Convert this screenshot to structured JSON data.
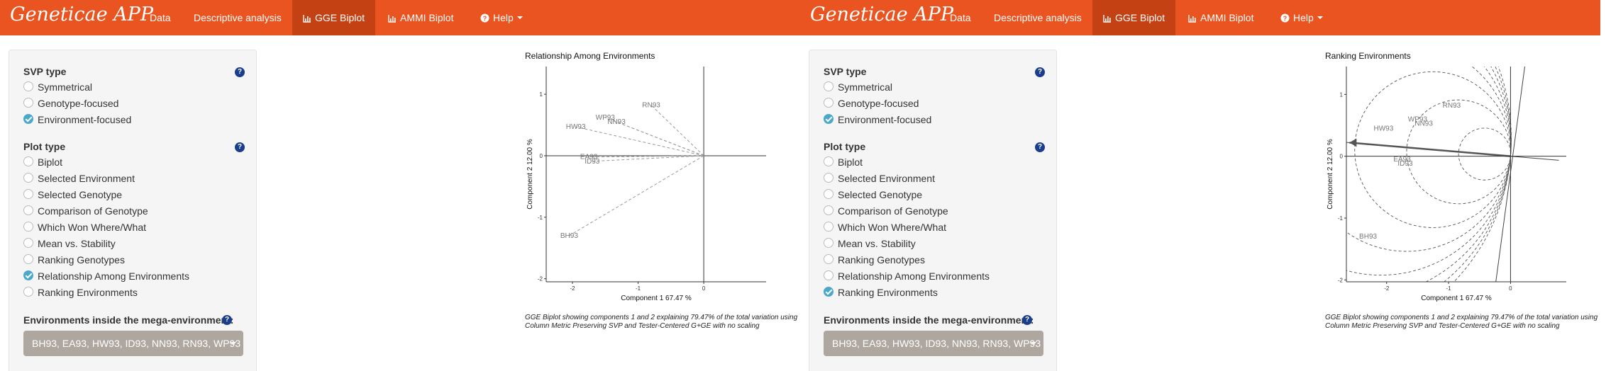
{
  "brand": "Geneticae APP",
  "nav": {
    "data": "Data",
    "descriptive": "Descriptive analysis",
    "gge": "GGE Biplot",
    "ammi": "AMMI Biplot",
    "help": "Help"
  },
  "colors": {
    "navbar": "#e95420",
    "active_tab": "#c34113",
    "help_icon": "#1a3e8c",
    "checked": "#4aa8c9",
    "select_bg": "#aea79f"
  },
  "icons": {
    "bar_chart": "bar-chart-icon",
    "help": "question-circle-icon"
  },
  "svp_type": {
    "label": "SVP type",
    "help": "?",
    "options": [
      "Symmetrical",
      "Genotype-focused",
      "Environment-focused"
    ]
  },
  "plot_type": {
    "label": "Plot type",
    "help": "?",
    "options": [
      "Biplot",
      "Selected Environment",
      "Selected Genotype",
      "Comparison of Genotype",
      "Which Won Where/What",
      "Mean vs. Stability",
      "Ranking Genotypes",
      "Relationship Among Environments",
      "Ranking Environments"
    ]
  },
  "mega_env": {
    "label": "Environments inside the mega-environment:",
    "help": "?",
    "selected": "BH93, EA93, HW93, ID93, NN93, RN93, WP93"
  },
  "panels": [
    {
      "svp_selected": "Environment-focused",
      "plot_selected": "Relationship Among Environments",
      "plot_title": "Relationship Among Environments",
      "caption": "GGE Biplot showing components 1 and 2 explaining 79.47% of the total variation using Column Metric Preserving SVP and Tester-Centered G+GE with no scaling"
    },
    {
      "svp_selected": "Environment-focused",
      "plot_selected": "Ranking Environments",
      "plot_title": "Ranking Environments",
      "caption": "GGE Biplot showing components 1 and 2 explaining 79.47% of the total variation using Column Metric Preserving SVP and Tester-Centered G+GE with no scaling"
    }
  ],
  "chart_data": [
    {
      "type": "scatter",
      "title": "Relationship Among Environments",
      "xlabel": "Component 1 67.47 %",
      "ylabel": "Component 2 12.00 %",
      "xticks": [
        -2,
        -1,
        0
      ],
      "yticks": [
        1,
        0,
        -1,
        -2
      ],
      "xlim": [
        -2.4,
        0.95
      ],
      "ylim": [
        -2.05,
        1.45
      ],
      "points": [
        {
          "label": "RN93",
          "x": -0.8,
          "y": 0.82
        },
        {
          "label": "WP93",
          "x": -1.5,
          "y": 0.62
        },
        {
          "label": "NN93",
          "x": -1.33,
          "y": 0.55
        },
        {
          "label": "HW93",
          "x": -1.95,
          "y": 0.47
        },
        {
          "label": "EA93",
          "x": -1.75,
          "y": -0.02
        },
        {
          "label": "ID93",
          "x": -1.7,
          "y": -0.09
        },
        {
          "label": "BH93",
          "x": -2.05,
          "y": -1.3
        }
      ],
      "vectors_from_origin": true,
      "grid": false
    },
    {
      "type": "scatter",
      "title": "Ranking Environments",
      "xlabel": "Component 1 67.47 %",
      "ylabel": "Component 2 12.00 %",
      "xticks": [
        -2,
        -1,
        0
      ],
      "yticks": [
        1,
        0,
        -1,
        -2
      ],
      "xlim": [
        -2.65,
        0.9
      ],
      "ylim": [
        -2.03,
        1.45
      ],
      "points": [
        {
          "label": "RN93",
          "x": -0.95,
          "y": 0.82
        },
        {
          "label": "WP93",
          "x": -1.5,
          "y": 0.6
        },
        {
          "label": "NN93",
          "x": -1.4,
          "y": 0.53
        },
        {
          "label": "HW93",
          "x": -2.05,
          "y": 0.45
        },
        {
          "label": "EA93",
          "x": -1.75,
          "y": -0.05
        },
        {
          "label": "ID93",
          "x": -1.7,
          "y": -0.12
        },
        {
          "label": "BH93",
          "x": -2.3,
          "y": -1.3
        }
      ],
      "average_environment_axis": {
        "x": -2.6,
        "y": 0.22
      },
      "concentric_circles": true,
      "grid": false
    }
  ]
}
